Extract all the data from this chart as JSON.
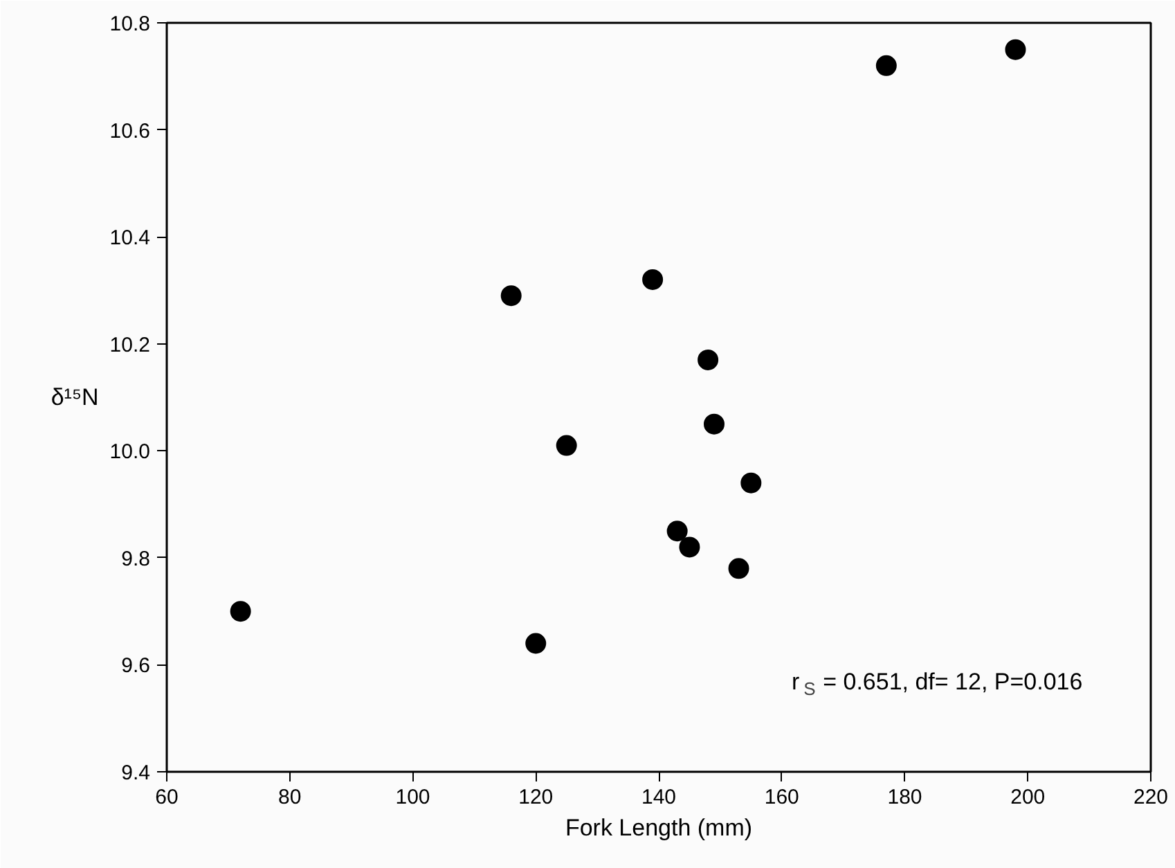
{
  "chart_data": {
    "type": "scatter",
    "xlabel": "Fork Length (mm)",
    "ylabel": "δ¹⁵N",
    "x": [
      72,
      116,
      139,
      148,
      149,
      125,
      155,
      143,
      145,
      153,
      120,
      177,
      198
    ],
    "values": [
      9.7,
      10.29,
      10.32,
      10.17,
      10.05,
      10.01,
      9.94,
      9.85,
      9.82,
      9.78,
      9.64,
      10.72,
      10.75
    ],
    "color": "#000000",
    "marker": "circle",
    "xlim": [
      60,
      220
    ],
    "xticks": [
      60,
      80,
      100,
      120,
      140,
      160,
      180,
      200,
      220
    ],
    "ylim": [
      9.4,
      10.8
    ],
    "yticks": [
      9.4,
      9.6,
      9.8,
      {
        "value": 10.0,
        "label": "10.0"
      },
      10.2,
      10.4,
      10.6,
      10.8
    ],
    "grid": false,
    "annotations": [
      "r$_{S}$ = 0.651, df= 12, P=0.016"
    ]
  }
}
